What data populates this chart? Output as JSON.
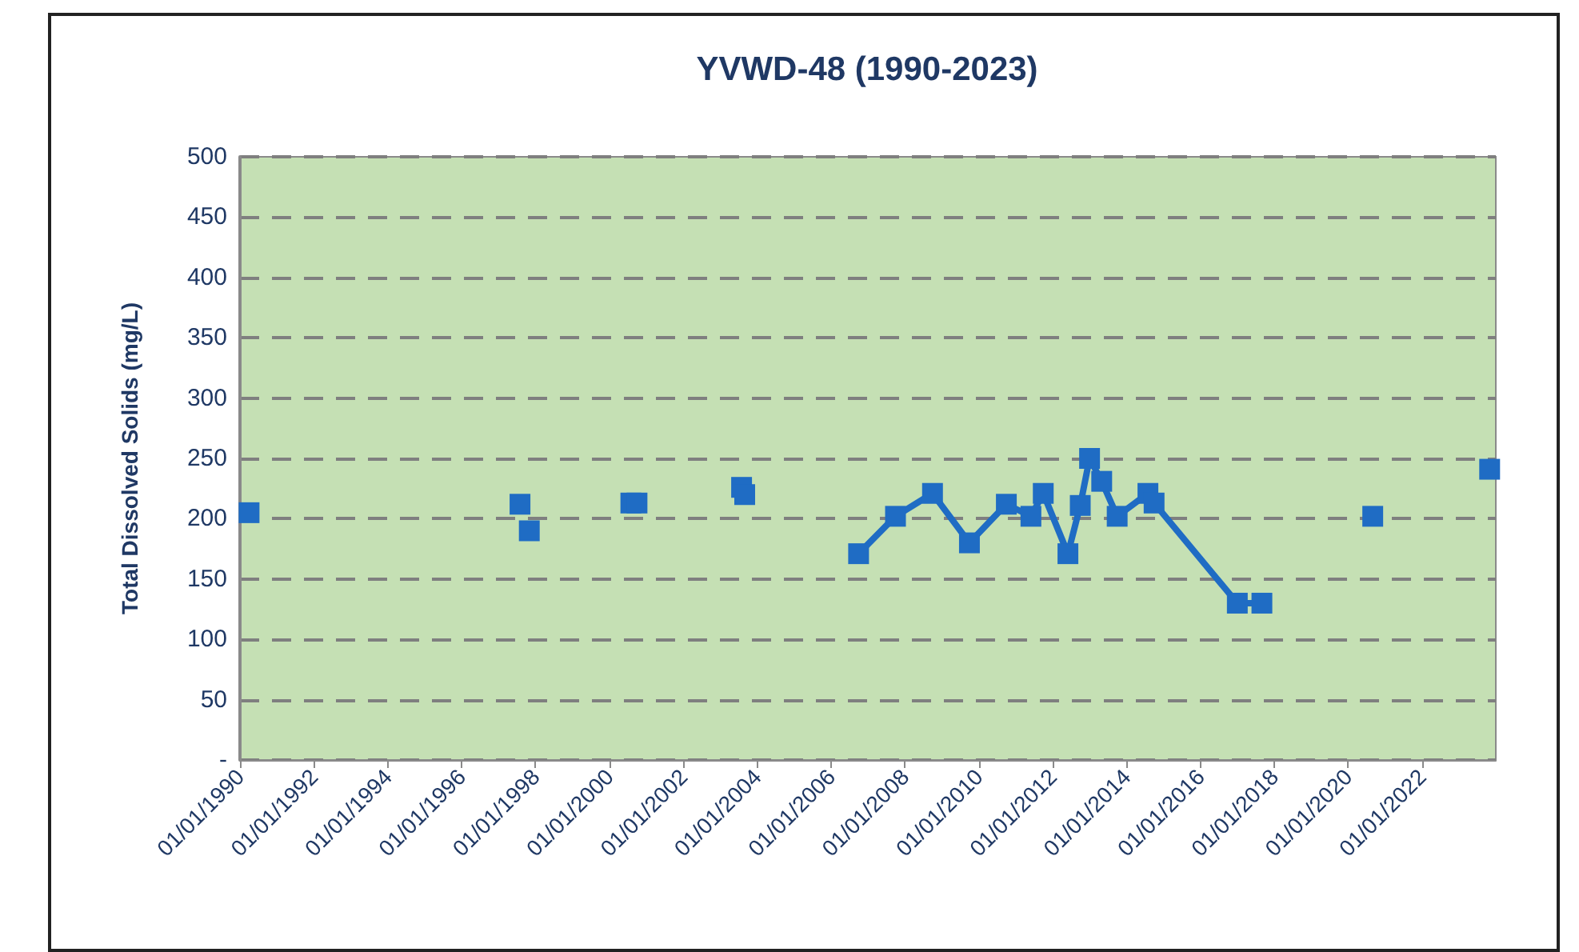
{
  "chart_data": {
    "type": "scatter",
    "title": "YVWD-48 (1990-2023)",
    "ylabel": "Total Dissolved Solids (mg/L)",
    "series": [
      {
        "color": "#1f6cc4",
        "x": [
          "1990-04",
          "1997-08",
          "1997-11",
          "2000-08",
          "2000-10",
          "2003-08",
          "2003-09",
          "2020-09",
          "2023-11"
        ],
        "values": [
          205,
          212,
          190,
          213,
          213,
          226,
          220,
          202,
          241
        ]
      },
      {
        "type": "line",
        "color": "#1f6cc4",
        "x": [
          "2006-10",
          "2007-10",
          "2008-10",
          "2009-10",
          "2010-10",
          "2011-06",
          "2011-10",
          "2012-06",
          "2012-10",
          "2013-01",
          "2013-05",
          "2013-10",
          "2014-08",
          "2014-10",
          "2017-01",
          "2017-09"
        ],
        "values": [
          171,
          202,
          221,
          180,
          212,
          202,
          221,
          171,
          211,
          250,
          231,
          202,
          221,
          213,
          130,
          130
        ]
      }
    ],
    "xlim": [
      "1990-01-01",
      "2024-01-01"
    ],
    "xticks": [
      {
        "value": "1990-01-01",
        "label": "01/01/1990"
      },
      {
        "value": "1992-01-01",
        "label": "01/01/1992"
      },
      {
        "value": "1994-01-01",
        "label": "01/01/1994"
      },
      {
        "value": "1996-01-01",
        "label": "01/01/1996"
      },
      {
        "value": "1998-01-01",
        "label": "01/01/1998"
      },
      {
        "value": "2000-01-01",
        "label": "01/01/2000"
      },
      {
        "value": "2002-01-01",
        "label": "01/01/2002"
      },
      {
        "value": "2004-01-01",
        "label": "01/01/2004"
      },
      {
        "value": "2006-01-01",
        "label": "01/01/2006"
      },
      {
        "value": "2008-01-01",
        "label": "01/01/2008"
      },
      {
        "value": "2010-01-01",
        "label": "01/01/2010"
      },
      {
        "value": "2012-01-01",
        "label": "01/01/2012"
      },
      {
        "value": "2014-01-01",
        "label": "01/01/2014"
      },
      {
        "value": "2016-01-01",
        "label": "01/01/2016"
      },
      {
        "value": "2018-01-01",
        "label": "01/01/2018"
      },
      {
        "value": "2020-01-01",
        "label": "01/01/2020"
      },
      {
        "value": "2022-01-01",
        "label": "01/01/2022"
      }
    ],
    "ylim": [
      0,
      500
    ],
    "yticks": [
      {
        "value": 0,
        "label": "-"
      },
      50,
      100,
      150,
      200,
      250,
      300,
      350,
      400,
      450,
      500
    ],
    "grid": "y",
    "marker": "square"
  }
}
